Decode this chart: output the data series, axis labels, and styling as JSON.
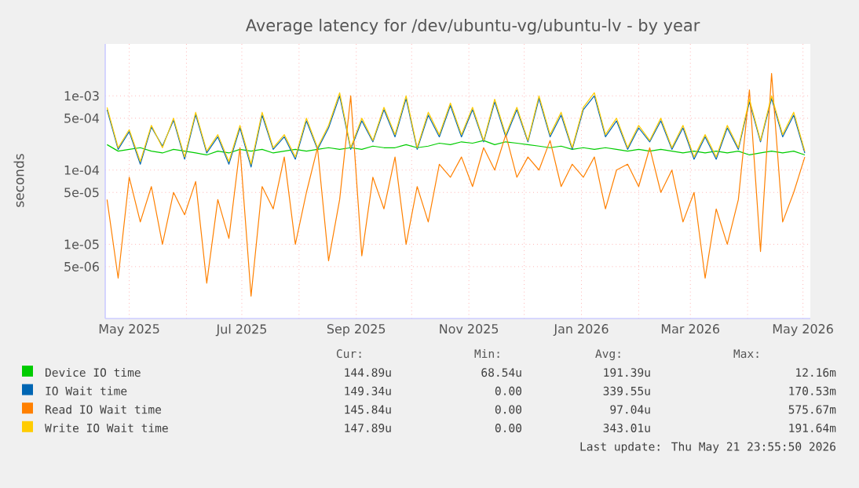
{
  "chart_data": {
    "type": "line",
    "title": "Average latency for /dev/ubuntu-vg/ubuntu-lv - by year",
    "ylabel": "seconds",
    "log": "y",
    "grid": true,
    "legend": "bottom",
    "xlim": [
      "2025-04-18",
      "2026-05-05"
    ],
    "ylim": [
      1e-06,
      0.005
    ],
    "xticks": [
      {
        "value": "2025-05-01",
        "label": "May 2025"
      },
      {
        "value": "2025-06-01",
        "label": null
      },
      {
        "value": "2025-07-01",
        "label": "Jul 2025"
      },
      {
        "value": "2025-08-01",
        "label": null
      },
      {
        "value": "2025-09-01",
        "label": "Sep 2025"
      },
      {
        "value": "2025-10-01",
        "label": null
      },
      {
        "value": "2025-11-01",
        "label": "Nov 2025"
      },
      {
        "value": "2025-12-01",
        "label": null
      },
      {
        "value": "2026-01-01",
        "label": "Jan 2026"
      },
      {
        "value": "2026-02-01",
        "label": null
      },
      {
        "value": "2026-03-01",
        "label": "Mar 2026"
      },
      {
        "value": "2026-04-01",
        "label": null
      },
      {
        "value": "2026-05-01",
        "label": "May 2026"
      }
    ],
    "yticks": [
      {
        "value": 5e-06,
        "label": "5e-06"
      },
      {
        "value": 1e-05,
        "label": "1e-05"
      },
      {
        "value": 5e-05,
        "label": "5e-05"
      },
      {
        "value": 0.0001,
        "label": "1e-04"
      },
      {
        "value": 0.0005,
        "label": "5e-04"
      },
      {
        "value": 0.001,
        "label": "1e-03"
      }
    ],
    "x": [
      "2025-04-19",
      "2025-04-25",
      "2025-05-01",
      "2025-05-07",
      "2025-05-13",
      "2025-05-19",
      "2025-05-25",
      "2025-05-31",
      "2025-06-06",
      "2025-06-12",
      "2025-06-18",
      "2025-06-24",
      "2025-06-30",
      "2025-07-06",
      "2025-07-12",
      "2025-07-18",
      "2025-07-24",
      "2025-07-30",
      "2025-08-05",
      "2025-08-11",
      "2025-08-17",
      "2025-08-23",
      "2025-08-29",
      "2025-09-04",
      "2025-09-10",
      "2025-09-16",
      "2025-09-22",
      "2025-09-28",
      "2025-10-04",
      "2025-10-10",
      "2025-10-16",
      "2025-10-22",
      "2025-10-28",
      "2025-11-03",
      "2025-11-09",
      "2025-11-15",
      "2025-11-21",
      "2025-11-27",
      "2025-12-03",
      "2025-12-09",
      "2025-12-15",
      "2025-12-21",
      "2025-12-27",
      "2026-01-02",
      "2026-01-08",
      "2026-01-14",
      "2026-01-20",
      "2026-01-26",
      "2026-02-01",
      "2026-02-07",
      "2026-02-13",
      "2026-02-19",
      "2026-02-25",
      "2026-03-03",
      "2026-03-09",
      "2026-03-15",
      "2026-03-21",
      "2026-03-27",
      "2026-04-02",
      "2026-04-08",
      "2026-04-14",
      "2026-04-20",
      "2026-04-26",
      "2026-05-02"
    ],
    "series": [
      {
        "name": "Device IO time",
        "color": "#00cc00",
        "values": [
          0.00022,
          0.00018,
          0.00019,
          0.0002,
          0.00018,
          0.00017,
          0.00019,
          0.00018,
          0.00017,
          0.00016,
          0.00018,
          0.00017,
          0.00019,
          0.00018,
          0.00019,
          0.00017,
          0.00018,
          0.00019,
          0.00018,
          0.00019,
          0.0002,
          0.00019,
          0.0002,
          0.00019,
          0.00021,
          0.0002,
          0.0002,
          0.00022,
          0.0002,
          0.00021,
          0.00023,
          0.00022,
          0.00024,
          0.00023,
          0.00025,
          0.00022,
          0.00024,
          0.00023,
          0.00022,
          0.00021,
          0.0002,
          0.00021,
          0.00019,
          0.0002,
          0.00019,
          0.0002,
          0.00019,
          0.00018,
          0.00019,
          0.00018,
          0.00019,
          0.00018,
          0.00017,
          0.00018,
          0.00017,
          0.00018,
          0.00017,
          0.00018,
          0.00016,
          0.00017,
          0.00018,
          0.00017,
          0.00018,
          0.00016
        ]
      },
      {
        "name": "IO Wait time",
        "color": "#0066b3",
        "values": [
          0.00065,
          0.00019,
          0.00033,
          0.00012,
          0.00038,
          0.00021,
          0.00047,
          0.00014,
          0.00056,
          0.00017,
          0.00028,
          0.00012,
          0.00037,
          0.00011,
          0.00055,
          0.00019,
          0.00028,
          0.00014,
          0.00046,
          0.00019,
          0.00037,
          0.001,
          0.00019,
          0.00046,
          0.00024,
          0.00065,
          0.00028,
          0.00092,
          0.00019,
          0.00055,
          0.00028,
          0.00074,
          0.00028,
          0.00065,
          0.00024,
          0.00083,
          0.00028,
          0.00065,
          0.00024,
          0.00092,
          0.00028,
          0.00055,
          0.00019,
          0.00065,
          0.001,
          0.00028,
          0.00046,
          0.00019,
          0.00037,
          0.00024,
          0.00046,
          0.00019,
          0.00037,
          0.00014,
          0.00028,
          0.00014,
          0.00037,
          0.00019,
          0.00083,
          0.00024,
          0.00092,
          0.00028,
          0.00055,
          0.00017
        ]
      },
      {
        "name": "Read IO Wait time",
        "color": "#ff8000",
        "values": [
          4e-05,
          3.5e-06,
          8e-05,
          2e-05,
          6e-05,
          1e-05,
          5e-05,
          2.5e-05,
          7e-05,
          3e-06,
          4e-05,
          1.2e-05,
          0.0002,
          2e-06,
          6e-05,
          3e-05,
          0.00015,
          1e-05,
          5e-05,
          0.0002,
          6e-06,
          4e-05,
          0.001,
          7e-06,
          8e-05,
          3e-05,
          0.00015,
          1e-05,
          6e-05,
          2e-05,
          0.00012,
          8e-05,
          0.00015,
          6e-05,
          0.0002,
          0.0001,
          0.0003,
          8e-05,
          0.00015,
          0.0001,
          0.00025,
          6e-05,
          0.00012,
          8e-05,
          0.00015,
          3e-05,
          0.0001,
          0.00012,
          6e-05,
          0.0002,
          5e-05,
          0.0001,
          2e-05,
          5e-05,
          3.5e-06,
          3e-05,
          1e-05,
          4e-05,
          0.0012,
          8e-06,
          0.002,
          2e-05,
          5e-05,
          0.00015
        ]
      },
      {
        "name": "Write IO Wait time",
        "color": "#ffcc00",
        "values": [
          0.0007,
          0.0002,
          0.00035,
          0.00013,
          0.0004,
          0.0002,
          0.0005,
          0.00015,
          0.0006,
          0.00018,
          0.0003,
          0.00013,
          0.0004,
          0.00012,
          0.0006,
          0.0002,
          0.0003,
          0.00015,
          0.0005,
          0.0002,
          0.0004,
          0.0011,
          0.0002,
          0.0005,
          0.00025,
          0.0007,
          0.0003,
          0.001,
          0.0002,
          0.0006,
          0.0003,
          0.0008,
          0.0003,
          0.0007,
          0.00025,
          0.0009,
          0.0003,
          0.0007,
          0.00025,
          0.001,
          0.0003,
          0.0006,
          0.0002,
          0.0007,
          0.0011,
          0.0003,
          0.0005,
          0.0002,
          0.0004,
          0.00025,
          0.0005,
          0.0002,
          0.0004,
          0.00015,
          0.0003,
          0.00015,
          0.0004,
          0.0002,
          0.0009,
          0.00025,
          0.001,
          0.0003,
          0.0006,
          0.00018
        ]
      }
    ],
    "annotations": [
      "Cur:",
      "Min:",
      "Avg:",
      "Max:",
      "144.89u",
      "68.54u",
      "191.39u",
      "12.16m",
      "149.34u",
      "0.00",
      "339.55u",
      "170.53m",
      "145.84u",
      "0.00",
      "97.04u",
      "575.67m",
      "147.89u",
      "0.00",
      "343.01u",
      "191.64m",
      "Last update: Thu May 21 23:55:50 2026"
    ]
  }
}
